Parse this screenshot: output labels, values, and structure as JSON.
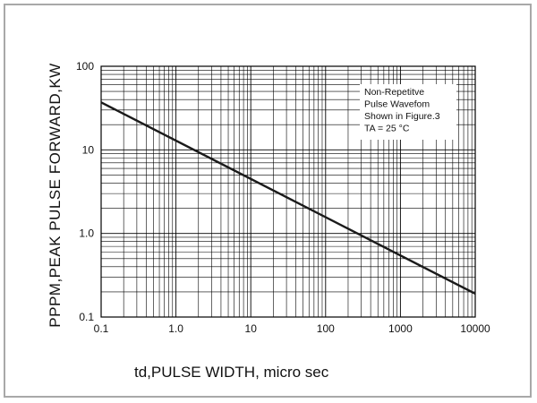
{
  "chart_data": {
    "type": "line",
    "title": "",
    "xlabel": "td,PULSE WIDTH, micro sec",
    "ylabel": "PPPM,PEAK PULSE FORWARD,KW",
    "x_scale": "log",
    "y_scale": "log",
    "xlim": [
      0.1,
      10000
    ],
    "ylim": [
      0.1,
      100
    ],
    "x_tick_labels": [
      "0.1",
      "1.0",
      "10",
      "100",
      "1000",
      "10000"
    ],
    "y_tick_labels": [
      "100",
      "10",
      "1.0",
      "0.1"
    ],
    "grid": true,
    "series": [
      {
        "x": [
          0.1,
          10000
        ],
        "y": [
          37,
          0.19
        ]
      }
    ],
    "annotation": [
      "Non-Repetitve",
      "Pulse Wavefom",
      "Shown in Figure.3",
      "TA = 25 °C"
    ],
    "colors": {
      "line": "#1a1a1a",
      "grid": "#000000",
      "frame": "#a8a8a8"
    }
  }
}
